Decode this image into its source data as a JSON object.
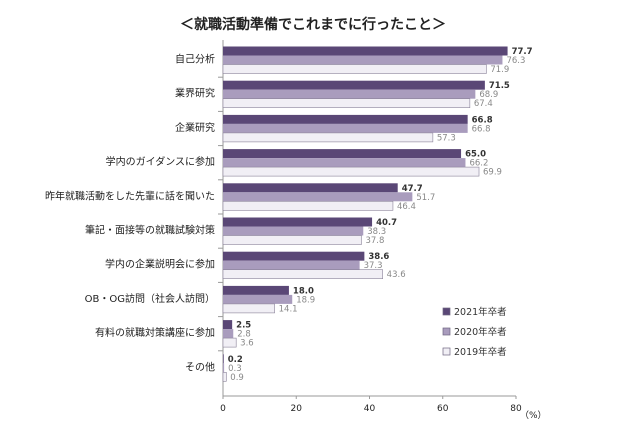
{
  "chart_data": {
    "type": "bar",
    "orientation": "horizontal",
    "title": "＜就職活動準備でこれまでに行ったこと＞",
    "unit_label": "（%）",
    "xlim": [
      0,
      80
    ],
    "xticks": [
      "0",
      "20",
      "40",
      "60",
      "80"
    ],
    "categories": [
      "自己分析",
      "業界研究",
      "企業研究",
      "学内のガイダンスに参加",
      "昨年就職活動をした先輩に話を聞いた",
      "筆記・面接等の就職試験対策",
      "学内の企業説明会に参加",
      "OB・OG訪問（社会人訪問）",
      "有料の就職対策講座に参加",
      "その他"
    ],
    "series": [
      {
        "name": "2021年卒者",
        "color": "#5a4776",
        "text_color": "#333333",
        "values": [
          77.7,
          71.5,
          66.8,
          65.0,
          47.7,
          40.7,
          38.6,
          18.0,
          2.5,
          0.2
        ],
        "labels": [
          "77.7",
          "71.5",
          "66.8",
          "65.0",
          "47.7",
          "40.7",
          "38.6",
          "18.0",
          "2.5",
          "0.2"
        ]
      },
      {
        "name": "2020年卒者",
        "color": "#a99cbd",
        "text_color": "#888888",
        "values": [
          76.3,
          68.9,
          66.8,
          66.2,
          51.7,
          38.3,
          37.3,
          18.9,
          2.8,
          0.3
        ],
        "labels": [
          "76.3",
          "68.9",
          "66.8",
          "66.2",
          "51.7",
          "38.3",
          "37.3",
          "18.9",
          "2.8",
          "0.3"
        ]
      },
      {
        "name": "2019年卒者",
        "color": "#f1eff5",
        "text_color": "#888888",
        "values": [
          71.9,
          67.4,
          57.3,
          69.9,
          46.4,
          37.8,
          43.6,
          14.1,
          3.6,
          0.9
        ],
        "labels": [
          "71.9",
          "67.4",
          "57.3",
          "69.9",
          "46.4",
          "37.8",
          "43.6",
          "14.1",
          "3.6",
          "0.9"
        ]
      }
    ],
    "legend_position": "right"
  }
}
